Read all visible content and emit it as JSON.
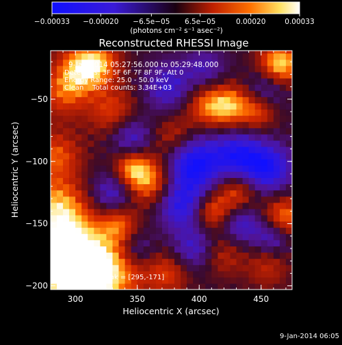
{
  "chart_data": {
    "type": "heatmap",
    "title": "Reconstructed RHESSI Image",
    "xlabel": "Heliocentric X (arcsec)",
    "ylabel": "Heliocentric Y (arcsec)",
    "xlim": [
      280,
      475
    ],
    "ylim": [
      -203,
      -11
    ],
    "x_ticks": [
      300,
      350,
      400,
      450
    ],
    "x_tick_labels": [
      "300",
      "350",
      "400",
      "450"
    ],
    "y_ticks": [
      -50,
      -100,
      -150,
      -200
    ],
    "y_tick_labels": [
      "−50",
      "−100",
      "−150",
      "−200"
    ],
    "colorbar": {
      "min": -0.00033,
      "max": 0.00033,
      "ticks": [
        -0.00033,
        -0.0002,
        -6.5e-05,
        6.5e-05,
        0.0002,
        0.00033
      ],
      "tick_labels": [
        "−0.00033",
        "−0.00020",
        "−6.5e−05",
        "6.5e−05",
        "0.00020",
        "0.00033"
      ],
      "unit_label": "(photons cm⁻² s⁻¹ asec⁻²)"
    },
    "annotations": {
      "time_range": "9-Jan-2014 05:27:56.000 to 05:29:48.000",
      "detectors": "Detectors: 3F 5F 6F 7F 8F 9F, Att 0",
      "energy": "Energy Range: 25.0 - 50.0 keV",
      "clean": "Clean    Total counts: 3.34E+03",
      "peak": "Position of Peak = [295,-171]"
    },
    "footer_date": "9-Jan-2014 06:05",
    "peak_position": [
      295,
      -171
    ],
    "blobs": [
      {
        "x": 295,
        "y": -171,
        "v": 1.0,
        "r": 22
      },
      {
        "x": 300,
        "y": -198,
        "v": 0.8,
        "r": 20
      },
      {
        "x": 330,
        "y": -190,
        "v": 0.6,
        "r": 20
      },
      {
        "x": 285,
        "y": -135,
        "v": 0.65,
        "r": 16
      },
      {
        "x": 285,
        "y": -95,
        "v": 0.55,
        "r": 14
      },
      {
        "x": 290,
        "y": -45,
        "v": 0.5,
        "r": 14
      },
      {
        "x": 305,
        "y": -25,
        "v": 0.75,
        "r": 14
      },
      {
        "x": 330,
        "y": -60,
        "v": 0.5,
        "r": 14
      },
      {
        "x": 360,
        "y": -115,
        "v": 0.75,
        "r": 14
      },
      {
        "x": 345,
        "y": -105,
        "v": 0.6,
        "r": 10
      },
      {
        "x": 335,
        "y": -150,
        "v": 0.5,
        "r": 10
      },
      {
        "x": 380,
        "y": -80,
        "v": 0.45,
        "r": 12
      },
      {
        "x": 405,
        "y": -55,
        "v": 0.55,
        "r": 12
      },
      {
        "x": 425,
        "y": -55,
        "v": 0.75,
        "r": 12
      },
      {
        "x": 448,
        "y": -60,
        "v": 0.5,
        "r": 10
      },
      {
        "x": 465,
        "y": -22,
        "v": 0.95,
        "r": 12
      },
      {
        "x": 468,
        "y": -145,
        "v": 0.7,
        "r": 12
      },
      {
        "x": 430,
        "y": -125,
        "v": 0.6,
        "r": 12
      },
      {
        "x": 410,
        "y": -140,
        "v": 0.6,
        "r": 10
      },
      {
        "x": 375,
        "y": -190,
        "v": 0.45,
        "r": 12
      },
      {
        "x": 420,
        "y": -175,
        "v": 0.35,
        "r": 12
      },
      {
        "x": 455,
        "y": -185,
        "v": 0.35,
        "r": 12
      },
      {
        "x": 320,
        "y": -20,
        "v": 0.5,
        "r": 12
      },
      {
        "x": 395,
        "y": -102,
        "v": -0.95,
        "r": 16
      },
      {
        "x": 385,
        "y": -135,
        "v": -0.7,
        "r": 14
      },
      {
        "x": 430,
        "y": -95,
        "v": -0.75,
        "r": 14
      },
      {
        "x": 455,
        "y": -105,
        "v": -0.85,
        "r": 14
      },
      {
        "x": 345,
        "y": -80,
        "v": -0.55,
        "r": 12
      },
      {
        "x": 330,
        "y": -125,
        "v": -0.55,
        "r": 12
      },
      {
        "x": 375,
        "y": -40,
        "v": -0.55,
        "r": 14
      },
      {
        "x": 405,
        "y": -25,
        "v": -0.4,
        "r": 12
      },
      {
        "x": 455,
        "y": -40,
        "v": -0.45,
        "r": 12
      },
      {
        "x": 435,
        "y": -150,
        "v": -0.55,
        "r": 12
      },
      {
        "x": 395,
        "y": -170,
        "v": -0.5,
        "r": 12
      },
      {
        "x": 460,
        "y": -160,
        "v": -0.55,
        "r": 10
      },
      {
        "x": 350,
        "y": -170,
        "v": -0.4,
        "r": 10
      }
    ]
  }
}
